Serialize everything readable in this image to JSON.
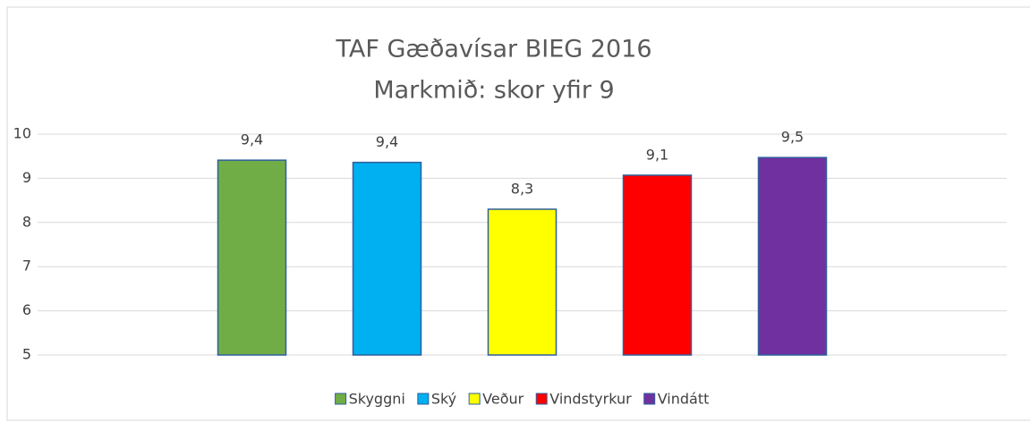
{
  "chart_data": {
    "type": "bar",
    "title": "TAF Gæðavísar BIEG 2016",
    "subtitle": "Markmið: skor yfir 9",
    "categories": [
      null
    ],
    "series": [
      {
        "name": "Skyggni",
        "color": "#70ad47",
        "values": [
          9.41
        ],
        "value_labels": [
          "9,4"
        ]
      },
      {
        "name": "Ský",
        "color": "#00b0f0",
        "values": [
          9.36
        ],
        "value_labels": [
          "9,4"
        ]
      },
      {
        "name": "Veður",
        "color": "#ffff00",
        "values": [
          8.3
        ],
        "value_labels": [
          "8,3"
        ]
      },
      {
        "name": "Vindstyrkur",
        "color": "#ff0000",
        "values": [
          9.07
        ],
        "value_labels": [
          "9,1"
        ]
      },
      {
        "name": "Vindátt",
        "color": "#7030a0",
        "values": [
          9.47
        ],
        "value_labels": [
          "9,5"
        ]
      }
    ],
    "ylim": [
      5,
      10
    ],
    "yticks": [
      5,
      6,
      7,
      8,
      9,
      10
    ],
    "grid": true,
    "legend": "bottom"
  }
}
